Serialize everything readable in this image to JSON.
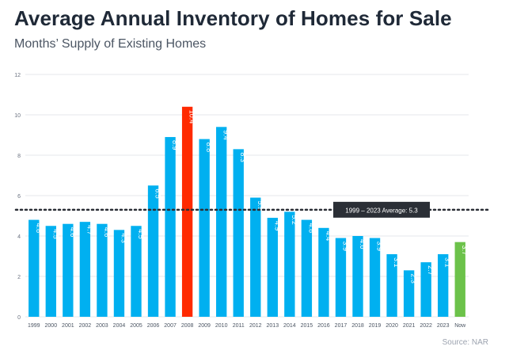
{
  "title": "Average Annual Inventory of Homes for Sale",
  "subtitle": "Months’ Supply of Existing Homes",
  "source": "Source: NAR",
  "chart_data": {
    "type": "bar",
    "categories": [
      "1999",
      "2000",
      "2001",
      "2002",
      "2003",
      "2004",
      "2005",
      "2006",
      "2007",
      "2008",
      "2009",
      "2010",
      "2011",
      "2012",
      "2013",
      "2014",
      "2015",
      "2016",
      "2017",
      "2018",
      "2019",
      "2020",
      "2021",
      "2022",
      "2023",
      "Now"
    ],
    "values": [
      4.8,
      4.5,
      4.6,
      4.7,
      4.6,
      4.3,
      4.5,
      6.5,
      8.9,
      10.4,
      8.8,
      9.4,
      8.3,
      5.9,
      4.9,
      5.2,
      4.8,
      4.4,
      3.9,
      4.0,
      3.9,
      3.1,
      2.3,
      2.7,
      3.1,
      3.7
    ],
    "labels": [
      "4.8",
      "4.5",
      "4.6",
      "4.7",
      "4.6",
      "4.3",
      "4.5",
      "6.5",
      "8.9",
      "10.4",
      "8.8",
      "9.4",
      "8.3",
      "5.9",
      "4.9",
      "5.2",
      "4.8",
      "4.4",
      "3.9",
      "4.0",
      "3.9",
      "3.1",
      "2.3",
      "2.7",
      "3.1",
      "3.7"
    ],
    "ylim": [
      0,
      12
    ],
    "yticks": [
      "0",
      "2",
      "4",
      "6",
      "8",
      "10",
      "12"
    ],
    "average": {
      "value": 5.3,
      "label": "1999 – 2023 Average:  5.3"
    },
    "colors": {
      "default": "#00b0f0",
      "peak": "#ff2a00",
      "now": "#6cc24a",
      "grid": "#e5e7eb",
      "callout_bg": "#2b2f36",
      "callout_text": "#ffffff"
    },
    "highlight": {
      "peak": "2008",
      "now": "Now"
    }
  }
}
